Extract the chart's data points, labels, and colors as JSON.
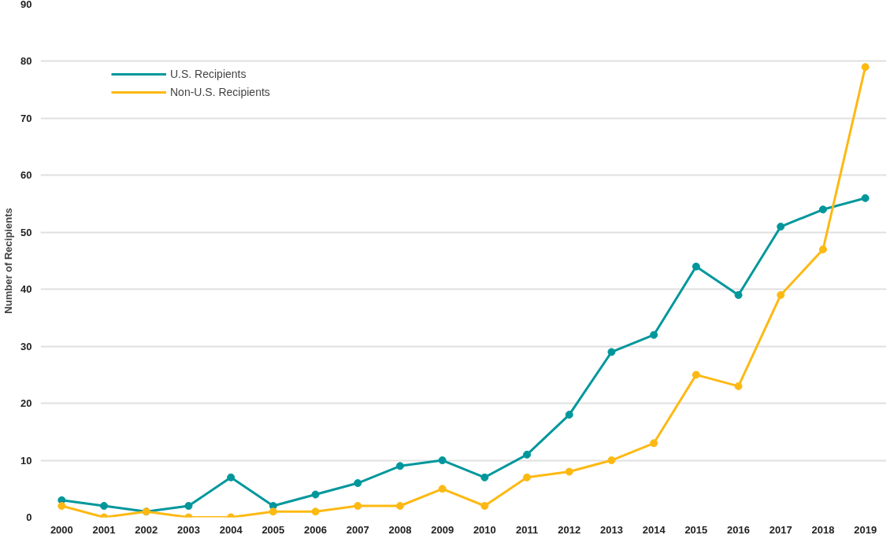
{
  "chart_data": {
    "type": "line",
    "ylabel": "Number of Recipients",
    "categories": [
      "2000",
      "2001",
      "2002",
      "2003",
      "2004",
      "2005",
      "2006",
      "2007",
      "2008",
      "2009",
      "2010",
      "2011",
      "2012",
      "2013",
      "2014",
      "2015",
      "2016",
      "2017",
      "2018",
      "2019"
    ],
    "series": [
      {
        "name": "U.S. Recipients",
        "color": "#00979c",
        "values": [
          3,
          2,
          1,
          2,
          7,
          2,
          4,
          6,
          9,
          10,
          7,
          11,
          18,
          29,
          32,
          44,
          39,
          51,
          54,
          56
        ]
      },
      {
        "name": "Non-U.S. Recipients",
        "color": "#fdb913",
        "values": [
          2,
          0,
          1,
          0,
          0,
          1,
          1,
          2,
          2,
          5,
          2,
          7,
          8,
          10,
          13,
          25,
          23,
          39,
          47,
          79
        ]
      }
    ],
    "ylim": [
      0,
      90
    ],
    "yticks": [
      0,
      10,
      20,
      30,
      40,
      50,
      60,
      70,
      80,
      90
    ],
    "grid": "y",
    "legend": "top left",
    "marker": "circle",
    "line_style": "solid"
  }
}
